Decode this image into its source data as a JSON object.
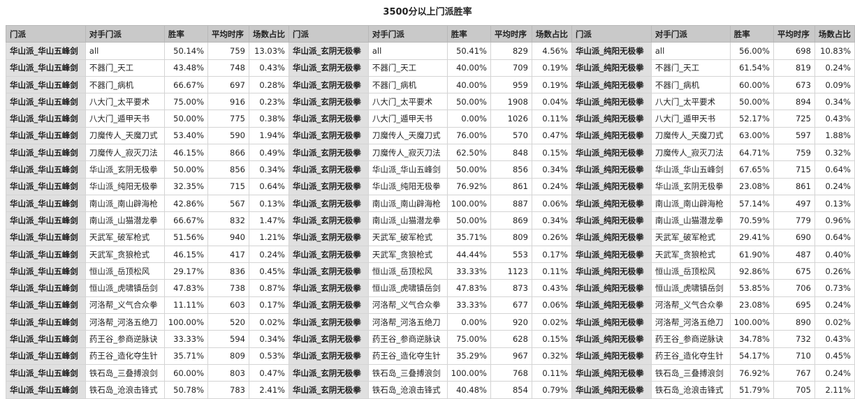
{
  "title": "3500分以上门派胜率",
  "columns": [
    "门派",
    "对手门派",
    "胜率",
    "平均时序",
    "场数占比"
  ],
  "colors": {
    "header_bg": "#c9c9c9",
    "faction_bg": "#e0e0e0"
  },
  "blocks": [
    {
      "faction": "华山派_华山五峰剑",
      "rows": [
        [
          "all",
          "50.14%",
          "759",
          "13.03%"
        ],
        [
          "不器门_天工",
          "43.48%",
          "748",
          "0.43%"
        ],
        [
          "不器门_病机",
          "66.67%",
          "697",
          "0.28%"
        ],
        [
          "八大门_太平要术",
          "75.00%",
          "916",
          "0.23%"
        ],
        [
          "八大门_遁甲天书",
          "50.00%",
          "775",
          "0.38%"
        ],
        [
          "刀魔传人_天魔刀式",
          "53.40%",
          "590",
          "1.94%"
        ],
        [
          "刀魔传人_寂灭刀法",
          "46.15%",
          "866",
          "0.49%"
        ],
        [
          "华山派_玄阴无极拳",
          "50.00%",
          "856",
          "0.34%"
        ],
        [
          "华山派_纯阳无极拳",
          "32.35%",
          "715",
          "0.64%"
        ],
        [
          "南山派_南山辟海枪",
          "42.86%",
          "567",
          "0.13%"
        ],
        [
          "南山派_山猫潜龙拳",
          "66.67%",
          "832",
          "1.47%"
        ],
        [
          "天武军_破军枪式",
          "51.56%",
          "940",
          "1.21%"
        ],
        [
          "天武军_贪狼枪式",
          "46.15%",
          "417",
          "0.24%"
        ],
        [
          "恒山派_岳顶松风",
          "29.17%",
          "836",
          "0.45%"
        ],
        [
          "恒山派_虎啸镇岳剑",
          "47.83%",
          "738",
          "0.87%"
        ],
        [
          "河洛帮_义气合众拳",
          "11.11%",
          "603",
          "0.17%"
        ],
        [
          "河洛帮_河洛五绝刀",
          "100.00%",
          "520",
          "0.02%"
        ],
        [
          "药王谷_参商逆脉诀",
          "33.33%",
          "594",
          "0.34%"
        ],
        [
          "药王谷_造化夺生针",
          "35.71%",
          "809",
          "0.53%"
        ],
        [
          "铁石岛_三叠搏浪剑",
          "60.00%",
          "803",
          "0.47%"
        ],
        [
          "铁石岛_沧浪击锋式",
          "50.78%",
          "783",
          "2.41%"
        ]
      ]
    },
    {
      "faction": "华山派_玄阴无极拳",
      "rows": [
        [
          "all",
          "50.41%",
          "829",
          "4.56%"
        ],
        [
          "不器门_天工",
          "40.00%",
          "709",
          "0.19%"
        ],
        [
          "不器门_病机",
          "40.00%",
          "959",
          "0.19%"
        ],
        [
          "八大门_太平要术",
          "50.00%",
          "1908",
          "0.04%"
        ],
        [
          "八大门_遁甲天书",
          "0.00%",
          "1026",
          "0.11%"
        ],
        [
          "刀魔传人_天魔刀式",
          "76.00%",
          "570",
          "0.47%"
        ],
        [
          "刀魔传人_寂灭刀法",
          "62.50%",
          "848",
          "0.15%"
        ],
        [
          "华山派_华山五峰剑",
          "50.00%",
          "856",
          "0.34%"
        ],
        [
          "华山派_纯阳无极拳",
          "76.92%",
          "861",
          "0.24%"
        ],
        [
          "南山派_南山辟海枪",
          "100.00%",
          "887",
          "0.06%"
        ],
        [
          "南山派_山猫潜龙拳",
          "50.00%",
          "869",
          "0.34%"
        ],
        [
          "天武军_破军枪式",
          "35.71%",
          "809",
          "0.26%"
        ],
        [
          "天武军_贪狼枪式",
          "44.44%",
          "553",
          "0.17%"
        ],
        [
          "恒山派_岳顶松风",
          "33.33%",
          "1123",
          "0.11%"
        ],
        [
          "恒山派_虎啸镇岳剑",
          "47.83%",
          "873",
          "0.43%"
        ],
        [
          "河洛帮_义气合众拳",
          "33.33%",
          "677",
          "0.06%"
        ],
        [
          "河洛帮_河洛五绝刀",
          "0.00%",
          "920",
          "0.02%"
        ],
        [
          "药王谷_参商逆脉诀",
          "75.00%",
          "628",
          "0.15%"
        ],
        [
          "药王谷_造化夺生针",
          "35.29%",
          "967",
          "0.32%"
        ],
        [
          "铁石岛_三叠搏浪剑",
          "100.00%",
          "768",
          "0.11%"
        ],
        [
          "铁石岛_沧浪击锋式",
          "40.48%",
          "854",
          "0.79%"
        ]
      ]
    },
    {
      "faction": "华山派_纯阳无极拳",
      "rows": [
        [
          "all",
          "56.00%",
          "698",
          "10.83%"
        ],
        [
          "不器门_天工",
          "61.54%",
          "819",
          "0.24%"
        ],
        [
          "不器门_病机",
          "60.00%",
          "673",
          "0.09%"
        ],
        [
          "八大门_太平要术",
          "50.00%",
          "894",
          "0.34%"
        ],
        [
          "八大门_遁甲天书",
          "52.17%",
          "725",
          "0.43%"
        ],
        [
          "刀魔传人_天魔刀式",
          "63.00%",
          "597",
          "1.88%"
        ],
        [
          "刀魔传人_寂灭刀法",
          "64.71%",
          "759",
          "0.32%"
        ],
        [
          "华山派_华山五峰剑",
          "67.65%",
          "715",
          "0.64%"
        ],
        [
          "华山派_玄阴无极拳",
          "23.08%",
          "861",
          "0.24%"
        ],
        [
          "南山派_南山辟海枪",
          "57.14%",
          "497",
          "0.13%"
        ],
        [
          "南山派_山猫潜龙拳",
          "70.59%",
          "779",
          "0.96%"
        ],
        [
          "天武军_破军枪式",
          "29.41%",
          "690",
          "0.64%"
        ],
        [
          "天武军_贪狼枪式",
          "61.90%",
          "487",
          "0.40%"
        ],
        [
          "恒山派_岳顶松风",
          "92.86%",
          "675",
          "0.26%"
        ],
        [
          "恒山派_虎啸镇岳剑",
          "53.85%",
          "706",
          "0.73%"
        ],
        [
          "河洛帮_义气合众拳",
          "23.08%",
          "695",
          "0.24%"
        ],
        [
          "河洛帮_河洛五绝刀",
          "100.00%",
          "890",
          "0.02%"
        ],
        [
          "药王谷_参商逆脉诀",
          "34.78%",
          "732",
          "0.43%"
        ],
        [
          "药王谷_造化夺生针",
          "54.17%",
          "710",
          "0.45%"
        ],
        [
          "铁石岛_三叠搏浪剑",
          "76.92%",
          "767",
          "0.24%"
        ],
        [
          "铁石岛_沧浪击锋式",
          "51.79%",
          "705",
          "2.11%"
        ]
      ]
    }
  ]
}
